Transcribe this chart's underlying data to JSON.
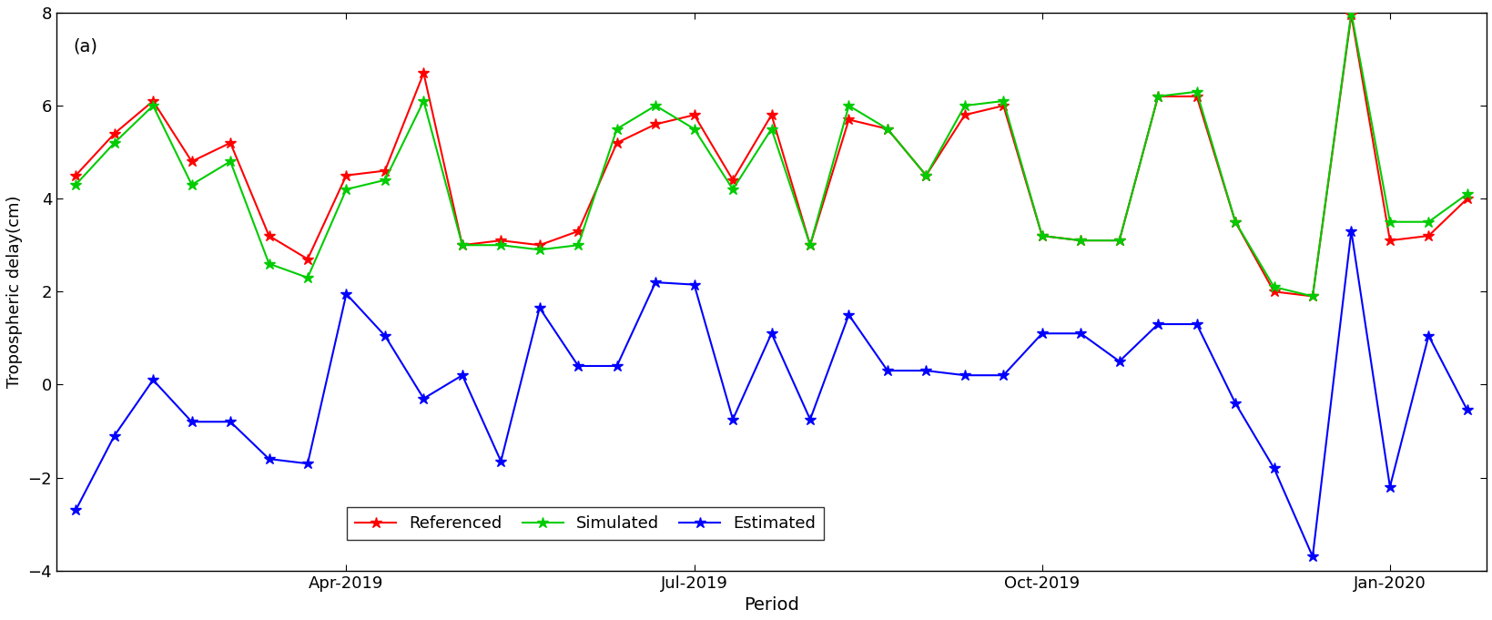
{
  "title_label": "(a)",
  "xlabel": "Period",
  "ylabel": "Tropospheric delay(cm)",
  "ylim": [
    -4,
    8
  ],
  "yticks": [
    -4,
    -2,
    0,
    2,
    4,
    6,
    8
  ],
  "xtick_labels": [
    "Apr-2019",
    "Jul-2019",
    "Oct-2019",
    "Jan-2020"
  ],
  "xtick_positions": [
    7,
    16,
    25,
    34
  ],
  "referenced": [
    4.5,
    5.4,
    6.1,
    4.8,
    5.2,
    3.2,
    2.7,
    4.5,
    4.6,
    6.7,
    3.0,
    3.1,
    3.0,
    3.3,
    5.2,
    5.6,
    5.8,
    4.4,
    5.8,
    3.0,
    5.7,
    5.5,
    4.5,
    5.8,
    6.0,
    3.2,
    3.1,
    3.1,
    6.2,
    6.2,
    3.5,
    2.0,
    1.9,
    7.95,
    3.1,
    3.2,
    4.0
  ],
  "simulated": [
    4.3,
    5.2,
    6.0,
    4.3,
    4.8,
    2.6,
    2.3,
    4.2,
    4.4,
    6.1,
    3.0,
    3.0,
    2.9,
    3.0,
    5.5,
    6.0,
    5.5,
    4.2,
    5.5,
    3.0,
    6.0,
    5.5,
    4.5,
    6.0,
    6.1,
    3.2,
    3.1,
    3.1,
    6.2,
    6.3,
    3.5,
    2.1,
    1.9,
    8.0,
    3.5,
    3.5,
    4.1
  ],
  "estimated": [
    -2.7,
    -1.1,
    0.1,
    -0.8,
    -0.8,
    -1.6,
    -1.7,
    1.95,
    1.05,
    -0.3,
    0.2,
    -1.65,
    1.65,
    0.4,
    0.4,
    2.2,
    2.15,
    -0.75,
    1.1,
    -0.75,
    1.5,
    0.3,
    0.3,
    0.2,
    0.2,
    1.1,
    1.1,
    0.5,
    1.3,
    1.3,
    -0.4,
    -1.8,
    -3.7,
    3.3,
    -2.2,
    1.05,
    -0.55
  ],
  "n_points": 37,
  "color_ref": "#FF0000",
  "color_sim": "#00CC00",
  "color_est": "#0000FF",
  "linewidth": 1.5,
  "markersize": 9,
  "marker": "*",
  "legend_fontsize": 13,
  "axis_fontsize": 13,
  "xlabel_fontsize": 14,
  "title_fontsize": 14,
  "figsize": [
    16.4,
    6.81
  ],
  "dpi": 100
}
